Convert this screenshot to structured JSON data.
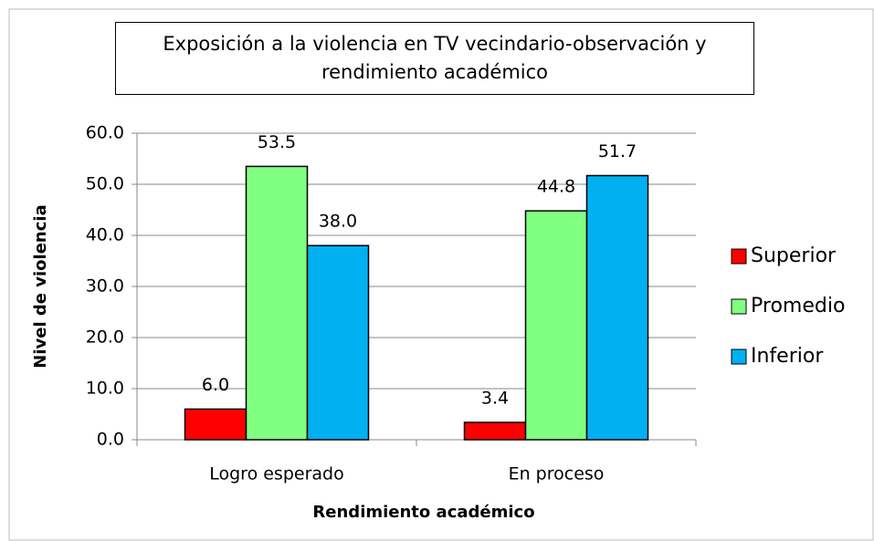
{
  "chart_data": {
    "type": "bar",
    "title": "Exposición a la violencia en TV vecindario-observación y rendimiento académico",
    "x_label": "Rendimiento académico",
    "y_label": "Nivel de violencia",
    "categories": [
      "Logro esperado",
      "En proceso"
    ],
    "series": [
      {
        "name": "Superior",
        "color": "#ff0000",
        "values": [
          6.0,
          3.4
        ],
        "value_labels": [
          "6.0",
          "3.4"
        ]
      },
      {
        "name": "Promedio",
        "color": "#80ff80",
        "values": [
          53.5,
          44.8
        ],
        "value_labels": [
          "53.5",
          "44.8"
        ]
      },
      {
        "name": "Inferior",
        "color": "#00b0f0",
        "values": [
          38.0,
          51.7
        ],
        "value_labels": [
          "38.0",
          "51.7"
        ]
      }
    ],
    "ylim": [
      0,
      60
    ],
    "yticks": [
      {
        "value": 0,
        "label": "0.0"
      },
      {
        "value": 10,
        "label": "10.0"
      },
      {
        "value": 20,
        "label": "20.0"
      },
      {
        "value": 30,
        "label": "30.0"
      },
      {
        "value": 40,
        "label": "40.0"
      },
      {
        "value": 50,
        "label": "50.0"
      },
      {
        "value": 60,
        "label": "60.0"
      }
    ],
    "grid": true,
    "legend": "right"
  }
}
